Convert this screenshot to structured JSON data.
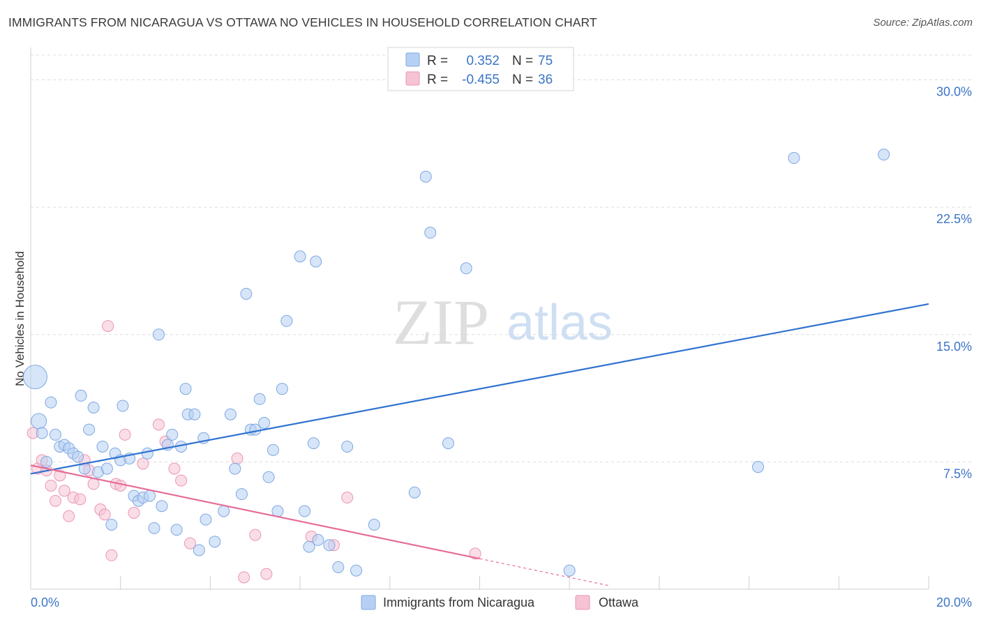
{
  "title": "IMMIGRANTS FROM NICARAGUA VS OTTAWA NO VEHICLES IN HOUSEHOLD CORRELATION CHART",
  "source": "Source: ZipAtlas.com",
  "watermark": {
    "zip": "ZIP",
    "atlas": "atlas"
  },
  "legend_box": {
    "rows": [
      {
        "r_label": "R =",
        "r_value": "0.352",
        "n_label": "N =",
        "n_value": "75"
      },
      {
        "r_label": "R =",
        "r_value": "-0.455",
        "n_label": "N =",
        "n_value": "36"
      }
    ]
  },
  "colors": {
    "blue_fill": "#b6d0f4",
    "blue_stroke": "#7ea8e0",
    "blue_line": "#2f72d0",
    "pink_fill": "#f6c3d4",
    "pink_stroke": "#eb95b3",
    "pink_line": "#e66d98",
    "axis_value": "#3b74c7",
    "grid": "#dcdcdc"
  },
  "chart_data": {
    "type": "scatter",
    "title": "IMMIGRANTS FROM NICARAGUA VS OTTAWA NO VEHICLES IN HOUSEHOLD CORRELATION CHART",
    "xlabel": "",
    "ylabel": "No Vehicles in Household",
    "xlim": [
      0,
      20
    ],
    "ylim": [
      0,
      31.5
    ],
    "x_tick_labels": [
      "0.0%",
      "20.0%"
    ],
    "y_ticks": [
      7.5,
      15.0,
      22.5,
      30.0
    ],
    "y_tick_labels": [
      "7.5%",
      "15.0%",
      "22.5%",
      "30.0%"
    ],
    "grid": true,
    "legend_position": "bottom",
    "series": [
      {
        "name": "Immigrants from Nicaragua",
        "color": "#b6d0f4",
        "trend": {
          "x": [
            0,
            20
          ],
          "y": [
            6.8,
            16.8
          ]
        },
        "points": [
          [
            0.1,
            12.5,
            3
          ],
          [
            0.18,
            9.9,
            2
          ],
          [
            0.25,
            9.2,
            1
          ],
          [
            0.35,
            7.5,
            1
          ],
          [
            0.45,
            11.0,
            1
          ],
          [
            0.55,
            9.1,
            1
          ],
          [
            0.65,
            8.4,
            1
          ],
          [
            0.75,
            8.5,
            1
          ],
          [
            0.85,
            8.3,
            1
          ],
          [
            0.95,
            8.0,
            1
          ],
          [
            1.05,
            7.8,
            1
          ],
          [
            1.12,
            11.4,
            1
          ],
          [
            1.2,
            7.1,
            1
          ],
          [
            1.3,
            9.4,
            1
          ],
          [
            1.4,
            10.7,
            1
          ],
          [
            1.5,
            6.9,
            1
          ],
          [
            1.6,
            8.4,
            1
          ],
          [
            1.7,
            7.1,
            1
          ],
          [
            1.8,
            3.8,
            1
          ],
          [
            1.88,
            8.0,
            1
          ],
          [
            2.0,
            7.6,
            1
          ],
          [
            2.05,
            10.8,
            1
          ],
          [
            2.2,
            7.7,
            1
          ],
          [
            2.3,
            5.5,
            1
          ],
          [
            2.4,
            5.2,
            1
          ],
          [
            2.5,
            5.4,
            1
          ],
          [
            2.6,
            8.0,
            1
          ],
          [
            2.65,
            5.5,
            1
          ],
          [
            2.75,
            3.6,
            1
          ],
          [
            2.85,
            15.0,
            1
          ],
          [
            2.92,
            4.9,
            1
          ],
          [
            3.05,
            8.5,
            1
          ],
          [
            3.15,
            9.1,
            1
          ],
          [
            3.25,
            3.5,
            1
          ],
          [
            3.35,
            8.4,
            1
          ],
          [
            3.45,
            11.8,
            1
          ],
          [
            3.5,
            10.3,
            1
          ],
          [
            3.65,
            10.3,
            1
          ],
          [
            3.75,
            2.3,
            1
          ],
          [
            3.85,
            8.9,
            1
          ],
          [
            3.9,
            4.1,
            1
          ],
          [
            4.1,
            2.8,
            1
          ],
          [
            4.3,
            4.6,
            1
          ],
          [
            4.45,
            10.3,
            1
          ],
          [
            4.55,
            7.1,
            1
          ],
          [
            4.7,
            5.6,
            1
          ],
          [
            4.8,
            17.4,
            1
          ],
          [
            4.9,
            9.4,
            1
          ],
          [
            5.0,
            9.4,
            1
          ],
          [
            5.1,
            11.2,
            1
          ],
          [
            5.2,
            9.8,
            1
          ],
          [
            5.3,
            6.6,
            1
          ],
          [
            5.4,
            8.2,
            1
          ],
          [
            5.5,
            4.6,
            1
          ],
          [
            5.6,
            11.8,
            1
          ],
          [
            5.7,
            15.8,
            1
          ],
          [
            6.0,
            19.6,
            1
          ],
          [
            6.1,
            4.6,
            1
          ],
          [
            6.2,
            2.5,
            1
          ],
          [
            6.3,
            8.6,
            1
          ],
          [
            6.35,
            19.3,
            1
          ],
          [
            6.4,
            2.9,
            1
          ],
          [
            6.65,
            2.6,
            1
          ],
          [
            6.85,
            1.3,
            1
          ],
          [
            7.05,
            8.4,
            1
          ],
          [
            7.25,
            1.1,
            1
          ],
          [
            7.65,
            3.8,
            1
          ],
          [
            8.55,
            5.7,
            1
          ],
          [
            8.8,
            24.3,
            1
          ],
          [
            8.9,
            21.0,
            1
          ],
          [
            9.3,
            8.6,
            1
          ],
          [
            9.7,
            18.9,
            1
          ],
          [
            12.0,
            1.1,
            1
          ],
          [
            16.2,
            7.2,
            1
          ],
          [
            17.0,
            25.4,
            1
          ],
          [
            19.0,
            25.6,
            1
          ]
        ]
      },
      {
        "name": "Ottawa",
        "color": "#f6c3d4",
        "trend": {
          "x": [
            0,
            10
          ],
          "y": [
            7.3,
            1.8
          ]
        },
        "trend_dashed_extension": {
          "x": [
            10,
            12.9
          ],
          "y": [
            1.8,
            0.2
          ]
        },
        "points": [
          [
            0.05,
            9.2,
            1
          ],
          [
            0.15,
            7.1,
            1
          ],
          [
            0.25,
            7.6,
            1
          ],
          [
            0.35,
            7.0,
            1
          ],
          [
            0.45,
            6.1,
            1
          ],
          [
            0.55,
            5.2,
            1
          ],
          [
            0.65,
            6.7,
            1
          ],
          [
            0.75,
            5.8,
            1
          ],
          [
            0.85,
            4.3,
            1
          ],
          [
            0.95,
            5.4,
            1
          ],
          [
            1.1,
            5.3,
            1
          ],
          [
            1.2,
            7.6,
            1
          ],
          [
            1.3,
            7.0,
            1
          ],
          [
            1.4,
            6.2,
            1
          ],
          [
            1.55,
            4.7,
            1
          ],
          [
            1.65,
            4.4,
            1
          ],
          [
            1.72,
            15.5,
            1
          ],
          [
            1.8,
            2.0,
            1
          ],
          [
            1.9,
            6.2,
            1
          ],
          [
            2.0,
            6.1,
            1
          ],
          [
            2.1,
            9.1,
            1
          ],
          [
            2.3,
            4.5,
            1
          ],
          [
            2.5,
            7.4,
            1
          ],
          [
            2.85,
            9.7,
            1
          ],
          [
            3.0,
            8.7,
            1
          ],
          [
            3.2,
            7.1,
            1
          ],
          [
            3.35,
            6.4,
            1
          ],
          [
            3.55,
            2.7,
            1
          ],
          [
            4.6,
            7.7,
            1
          ],
          [
            4.75,
            0.7,
            1
          ],
          [
            5.0,
            3.2,
            1
          ],
          [
            5.25,
            0.9,
            1
          ],
          [
            6.25,
            3.1,
            1
          ],
          [
            6.75,
            2.6,
            1
          ],
          [
            7.05,
            5.4,
            1
          ],
          [
            9.9,
            2.1,
            1
          ]
        ]
      }
    ]
  }
}
